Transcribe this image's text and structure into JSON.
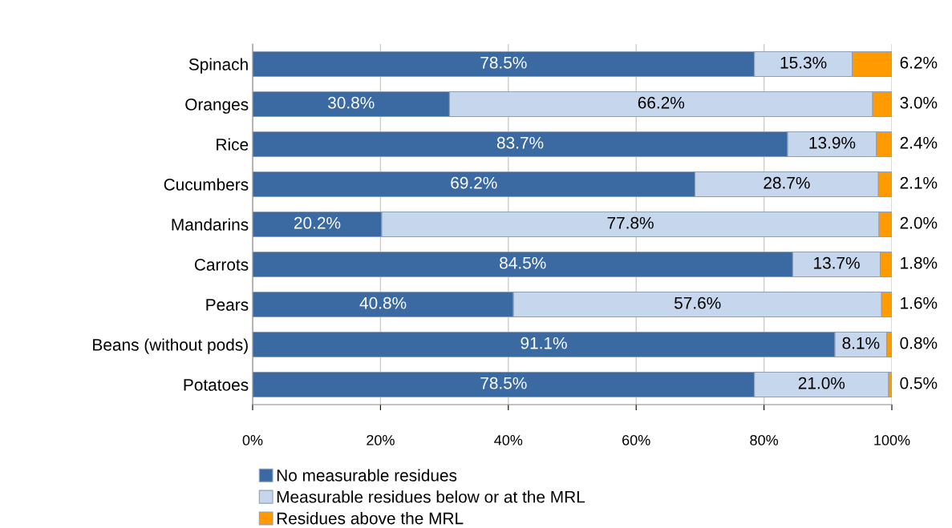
{
  "chart_data": {
    "type": "bar",
    "orientation": "horizontal",
    "stacked": true,
    "categories": [
      "Spinach",
      "Oranges",
      "Rice",
      "Cucumbers",
      "Mandarins",
      "Carrots",
      "Pears",
      "Beans (without pods)",
      "Potatoes"
    ],
    "series": [
      {
        "name": "No measurable residues",
        "color": "#3b6aa3",
        "values": [
          78.5,
          30.8,
          83.7,
          69.2,
          20.2,
          84.5,
          40.8,
          91.1,
          78.5
        ],
        "value_labels": [
          "78.5%",
          "30.8%",
          "83.7%",
          "69.2%",
          "20.2%",
          "84.5%",
          "40.8%",
          "91.1%",
          "78.5%"
        ]
      },
      {
        "name": "Measurable residues below or at the MRL",
        "color": "#c6d6ec",
        "values": [
          15.3,
          66.2,
          13.9,
          28.7,
          77.8,
          13.7,
          57.6,
          8.1,
          21.0
        ],
        "value_labels": [
          "15.3%",
          "66.2%",
          "13.9%",
          "28.7%",
          "77.8%",
          "13.7%",
          "57.6%",
          "8.1%",
          "21.0%"
        ]
      },
      {
        "name": "Residues above the MRL",
        "color": "#ff9a00",
        "values": [
          6.2,
          3.0,
          2.4,
          2.1,
          2.0,
          1.8,
          1.6,
          0.8,
          0.5
        ],
        "value_labels": [
          "6.2%",
          "3.0%",
          "2.4%",
          "2.1%",
          "2.0%",
          "1.8%",
          "1.6%",
          "0.8%",
          "0.5%"
        ]
      }
    ],
    "xlim": [
      0,
      100
    ],
    "xticks": [
      {
        "value": 0,
        "label": "0%"
      },
      {
        "value": 20,
        "label": "20%"
      },
      {
        "value": 40,
        "label": "40%"
      },
      {
        "value": 60,
        "label": "60%"
      },
      {
        "value": 80,
        "label": "80%"
      },
      {
        "value": 100,
        "label": "100%"
      }
    ],
    "grid": "x",
    "legend": "bottom"
  }
}
